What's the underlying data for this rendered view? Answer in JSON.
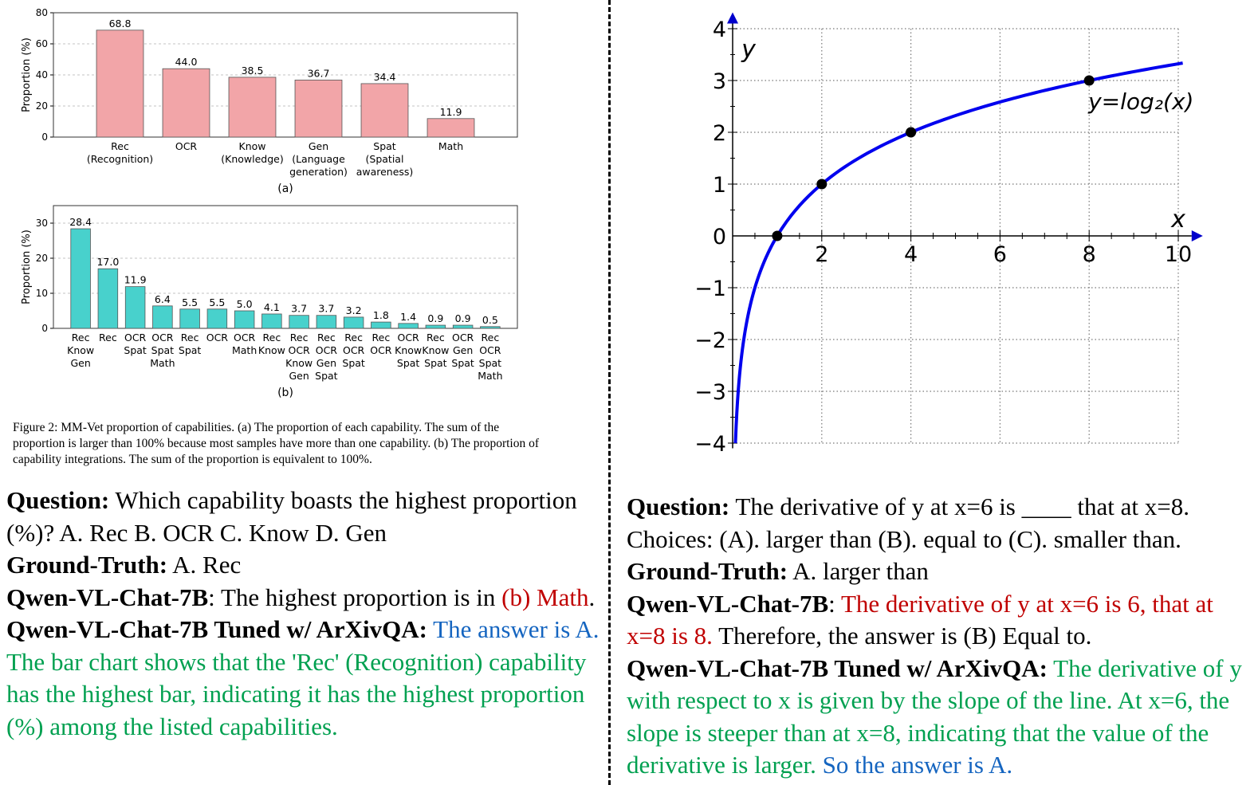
{
  "chart_data": [
    {
      "type": "bar",
      "panel": "(a)",
      "categories": [
        [
          "Rec",
          "(Recognition)"
        ],
        [
          "OCR"
        ],
        [
          "Know",
          "(Knowledge)"
        ],
        [
          "Gen",
          "(Language",
          "generation)"
        ],
        [
          "Spat",
          "(Spatial",
          "awareness)"
        ],
        [
          "Math"
        ]
      ],
      "values": [
        68.8,
        44.0,
        38.5,
        36.7,
        34.4,
        11.9
      ],
      "labels": [
        "68.8",
        "44.0",
        "38.5",
        "36.7",
        "34.4",
        "11.9"
      ],
      "ylabel": "Proportion (%)",
      "ylim": [
        0,
        80
      ],
      "yticks": [
        0,
        20,
        40,
        60,
        80
      ],
      "grid": true,
      "color": "#f2a5a8"
    },
    {
      "type": "bar",
      "panel": "(b)",
      "categories": [
        [
          "Rec",
          "Know",
          "Gen"
        ],
        [
          "Rec"
        ],
        [
          "OCR",
          "Spat"
        ],
        [
          "OCR",
          "Spat",
          "Math"
        ],
        [
          "Rec",
          "Spat"
        ],
        [
          "OCR"
        ],
        [
          "OCR",
          "Math"
        ],
        [
          "Rec",
          "Know"
        ],
        [
          "Rec",
          "OCR",
          "Know",
          "Gen"
        ],
        [
          "Rec",
          "OCR",
          "Gen",
          "Spat"
        ],
        [
          "Rec",
          "OCR",
          "Spat"
        ],
        [
          "Rec",
          "OCR"
        ],
        [
          "OCR",
          "Know",
          "Spat"
        ],
        [
          "Rec",
          "Know",
          "Spat"
        ],
        [
          "OCR",
          "Gen",
          "Spat"
        ],
        [
          "Rec",
          "OCR",
          "Spat",
          "Math"
        ]
      ],
      "values": [
        28.4,
        17.0,
        11.9,
        6.4,
        5.5,
        5.5,
        5.0,
        4.1,
        3.7,
        3.7,
        3.2,
        1.8,
        1.4,
        0.9,
        0.9,
        0.5
      ],
      "labels": [
        "28.4",
        "17.0",
        "11.9",
        "6.4",
        "5.5",
        "5.5",
        "5.0",
        "4.1",
        "3.7",
        "3.7",
        "3.2",
        "1.8",
        "1.4",
        "0.9",
        "0.9",
        "0.5"
      ],
      "ylabel": "Proportion (%)",
      "ylim": [
        0,
        35
      ],
      "yticks": [
        0,
        10,
        20,
        30
      ],
      "grid": true,
      "color": "#48d1cc"
    },
    {
      "type": "line",
      "function": "log2",
      "curve_label": "y=log₂(x)",
      "xlabel": "x",
      "ylabel": "y",
      "xlim": [
        0,
        10
      ],
      "ylim": [
        -4,
        4
      ],
      "xticks": [
        2,
        4,
        6,
        8,
        10
      ],
      "yticks": [
        -4,
        -3,
        -2,
        -1,
        0,
        1,
        2,
        3,
        4
      ],
      "x_tick_labels": [
        "2",
        "4",
        "6",
        "8",
        "10"
      ],
      "y_tick_labels": [
        "−4",
        "−3",
        "−2",
        "−1",
        "0",
        "1",
        "2",
        "3",
        "4"
      ],
      "points": [
        [
          1,
          0
        ],
        [
          2,
          1
        ],
        [
          4,
          2
        ],
        [
          8,
          3
        ]
      ],
      "grid": true,
      "line_color": "#0000ee"
    }
  ],
  "caption": "Figure 2: MM-Vet proportion of capabilities. (a) The proportion of each capability. The sum of the proportion is larger than 100% because most samples have more than one capability. (b) The proportion of capability integrations. The sum of the proportion is equivalent to 100%.",
  "left_qa": {
    "question_label": "Question:",
    "question": " Which capability boasts the highest proportion (%)? A. Rec B. OCR C. Know D. Gen",
    "gt_label": "Ground-Truth:",
    "gt": " A. Rec",
    "model1_label": "Qwen-VL-Chat-7B",
    "model1_colon": ": ",
    "model1_text": "The highest proportion is in ",
    "model1_red": "(b) Math",
    "model1_end": ".",
    "model2_label": "Qwen-VL-Chat-7B Tuned w/ ArXivQA:",
    "model2_blue": " The answer is A.",
    "model2_green": " The bar chart shows that the 'Rec' (Recognition) capability has the highest bar, indicating it has the highest proportion (%) among the listed capabilities."
  },
  "right_qa": {
    "question_label": "Question:",
    "question": " The derivative of y at x=6 is ____ that at x=8. Choices:  (A). larger than (B). equal to (C). smaller than.",
    "gt_label": "Ground-Truth:",
    "gt": " A. larger than",
    "model1_label": "Qwen-VL-Chat-7B",
    "model1_colon": ": ",
    "model1_red": "The derivative of y at x=6 is 6, that at x=8 is 8.",
    "model1_text": " Therefore, the answer is (B) Equal to.",
    "model2_label": "Qwen-VL-Chat-7B Tuned w/ ArXivQA:",
    "model2_green": " The derivative of y with respect to x is given by the slope of the line. At x=6, the slope is steeper than at x=8, indicating that the value of the derivative is larger.",
    "model2_blue": " So the answer is A."
  }
}
